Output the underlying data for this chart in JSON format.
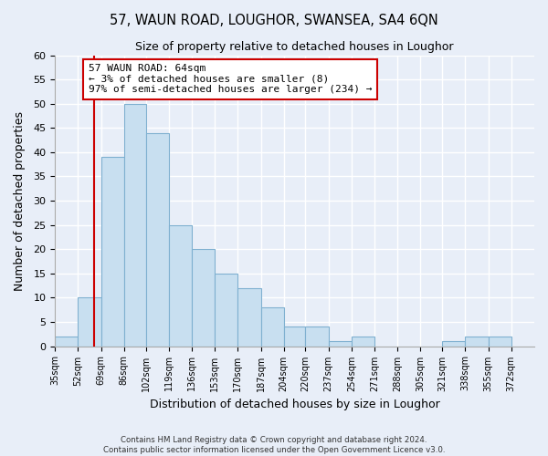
{
  "title": "57, WAUN ROAD, LOUGHOR, SWANSEA, SA4 6QN",
  "subtitle": "Size of property relative to detached houses in Loughor",
  "xlabel": "Distribution of detached houses by size in Loughor",
  "ylabel": "Number of detached properties",
  "bar_edges": [
    35,
    52,
    69,
    86,
    102,
    119,
    136,
    153,
    170,
    187,
    204,
    220,
    237,
    254,
    271,
    288,
    305,
    321,
    338,
    355,
    372,
    389
  ],
  "bar_heights": [
    2,
    10,
    39,
    50,
    44,
    25,
    20,
    15,
    12,
    8,
    4,
    4,
    1,
    2,
    0,
    0,
    0,
    1,
    2,
    2,
    0
  ],
  "tick_positions": [
    35,
    52,
    69,
    86,
    102,
    119,
    136,
    153,
    170,
    187,
    204,
    220,
    237,
    254,
    271,
    288,
    305,
    321,
    338,
    355,
    372
  ],
  "tick_labels": [
    "35sqm",
    "52sqm",
    "69sqm",
    "86sqm",
    "102sqm",
    "119sqm",
    "136sqm",
    "153sqm",
    "170sqm",
    "187sqm",
    "204sqm",
    "220sqm",
    "237sqm",
    "254sqm",
    "271sqm",
    "288sqm",
    "305sqm",
    "321sqm",
    "338sqm",
    "355sqm",
    "372sqm"
  ],
  "bar_color": "#c8dff0",
  "bar_edge_color": "#7fb0d0",
  "property_line_x": 64,
  "property_line_color": "#cc0000",
  "ylim": [
    0,
    60
  ],
  "yticks": [
    0,
    5,
    10,
    15,
    20,
    25,
    30,
    35,
    40,
    45,
    50,
    55,
    60
  ],
  "annotation_title": "57 WAUN ROAD: 64sqm",
  "annotation_line1": "← 3% of detached houses are smaller (8)",
  "annotation_line2": "97% of semi-detached houses are larger (234) →",
  "annotation_box_color": "#ffffff",
  "annotation_box_edge_color": "#cc0000",
  "footer1": "Contains HM Land Registry data © Crown copyright and database right 2024.",
  "footer2": "Contains public sector information licensed under the Open Government Licence v3.0.",
  "background_color": "#e8eef8",
  "plot_bg_color": "#e8eef8",
  "grid_color": "#ffffff"
}
